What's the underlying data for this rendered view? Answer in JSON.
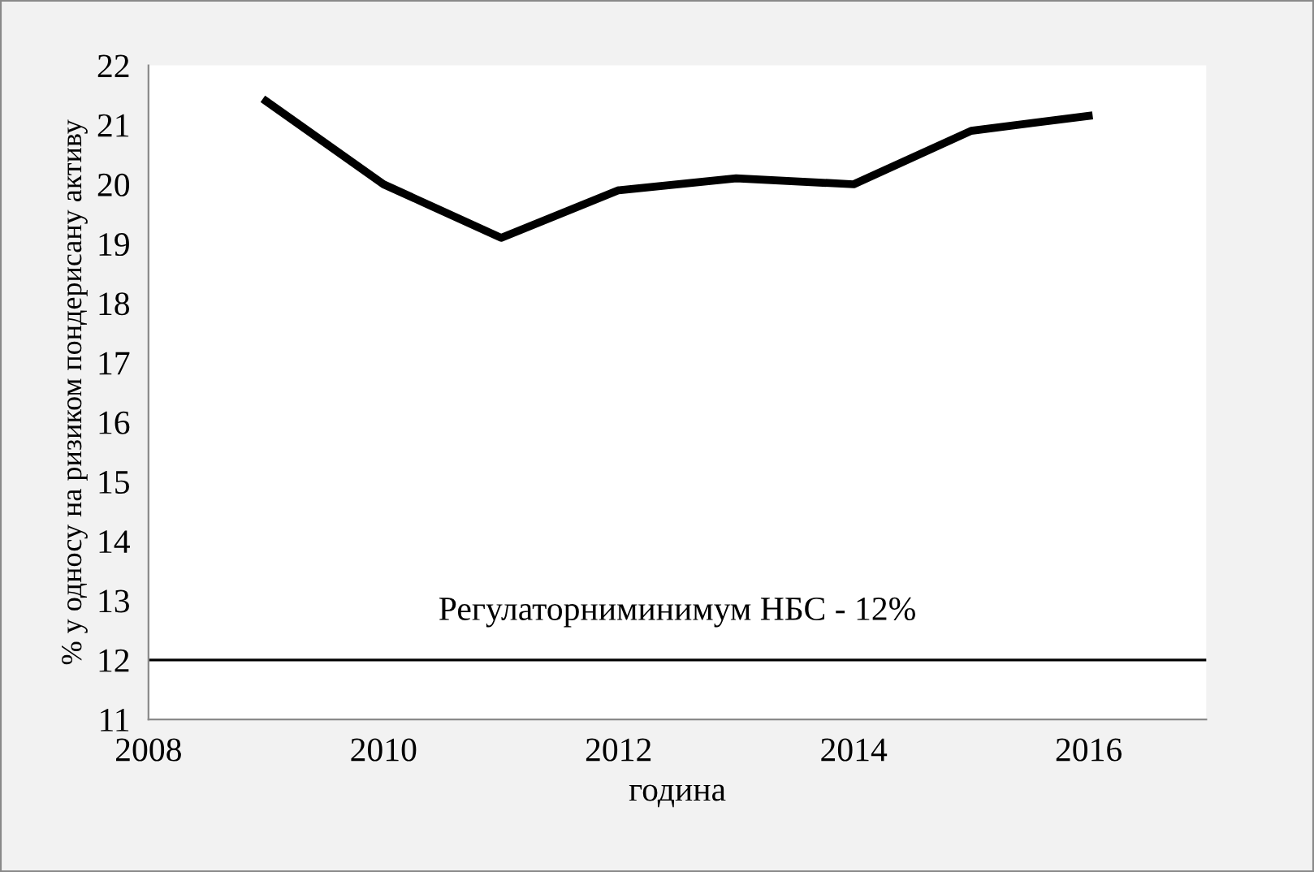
{
  "chart_data": {
    "type": "line",
    "xlabel": "година",
    "ylabel": "% у односу на ризиком пондерисану активу",
    "x": [
      2009,
      2010,
      2011,
      2012,
      2013,
      2014,
      2015,
      2016
    ],
    "series": [
      {
        "color": "#000000",
        "values": [
          21.4,
          20.0,
          19.1,
          19.9,
          20.1,
          20.0,
          20.9,
          21.15
        ]
      }
    ],
    "xlim": [
      2008,
      2017
    ],
    "xticks": [
      2008,
      2010,
      2012,
      2014,
      2016
    ],
    "ylim": [
      11,
      22
    ],
    "yticks": [
      11,
      12,
      13,
      14,
      15,
      16,
      17,
      18,
      19,
      20,
      21,
      22
    ],
    "ref_lines": [
      {
        "axis": "y",
        "value": 12,
        "label": "Регулаторниминимум НБС - 12%",
        "color": "#000000"
      }
    ],
    "grid": false,
    "legend": false,
    "marker": "none",
    "line_style": "solid"
  }
}
